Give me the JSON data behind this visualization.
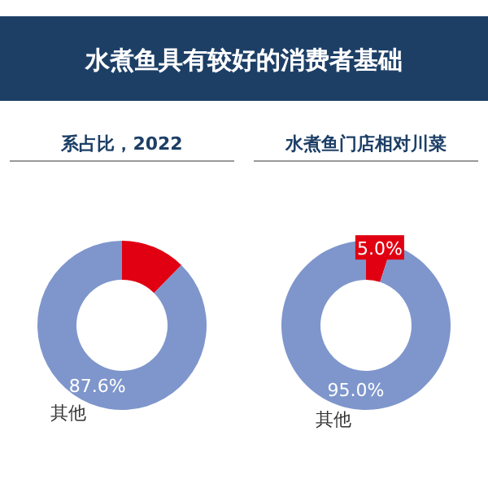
{
  "chart_data": [
    {
      "type": "donut",
      "title": "水煮鱼具有较好的消费者基础",
      "subtitle": "系占比，2022",
      "categories": [
        null,
        "其他"
      ],
      "values": [
        12.4,
        87.6
      ],
      "colors": [
        "#e00012",
        "#7f96cc"
      ],
      "value_labels": [
        null,
        "87.6%"
      ]
    },
    {
      "type": "donut",
      "subtitle": "水煮鱼门店相对川菜",
      "categories": [
        null,
        "其他"
      ],
      "values": [
        5.0,
        95.0
      ],
      "colors": [
        "#e00012",
        "#7f96cc"
      ],
      "value_labels": [
        "5.0%",
        "95.0%"
      ]
    }
  ]
}
